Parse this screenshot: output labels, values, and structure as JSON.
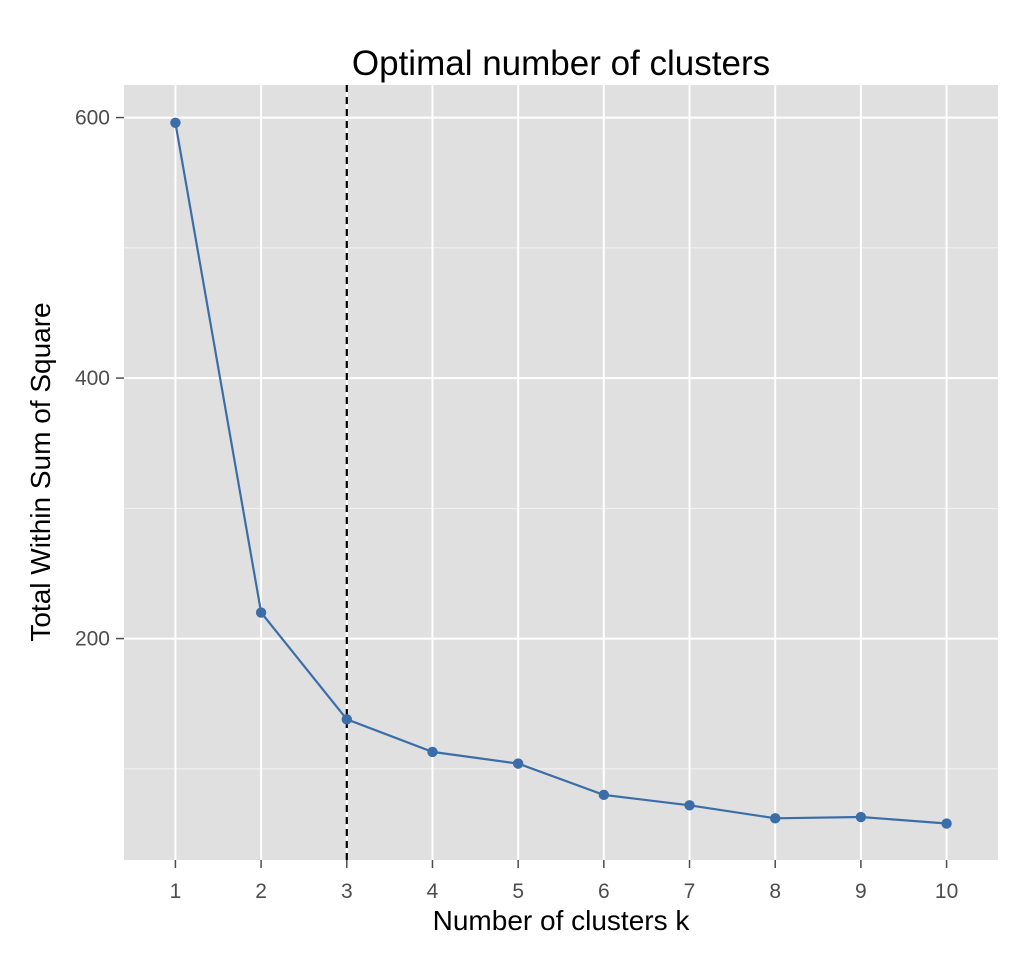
{
  "chart_data": {
    "type": "line",
    "title": "Optimal number of clusters",
    "xlabel": "Number of clusters k",
    "ylabel": "Total Within Sum of Square",
    "x": [
      1,
      2,
      3,
      4,
      5,
      6,
      7,
      8,
      9,
      10
    ],
    "series": [
      {
        "values": [
          596,
          220,
          138,
          113,
          104,
          80,
          72,
          62,
          63,
          58
        ],
        "color": "#3b6ea8"
      }
    ],
    "x_ticks": [
      "1",
      "2",
      "3",
      "4",
      "5",
      "6",
      "7",
      "8",
      "9",
      "10"
    ],
    "y_ticks": [
      "200",
      "400",
      "600"
    ],
    "y_tick_values": [
      200,
      400,
      600
    ],
    "xlim": [
      0.4,
      10.6
    ],
    "ylim": [
      30,
      625
    ],
    "vline": {
      "x": 3,
      "style": "dashed",
      "color": "#000000"
    },
    "grid": true,
    "panel_background": "#e0e0e0",
    "grid_color": "#ffffff"
  }
}
